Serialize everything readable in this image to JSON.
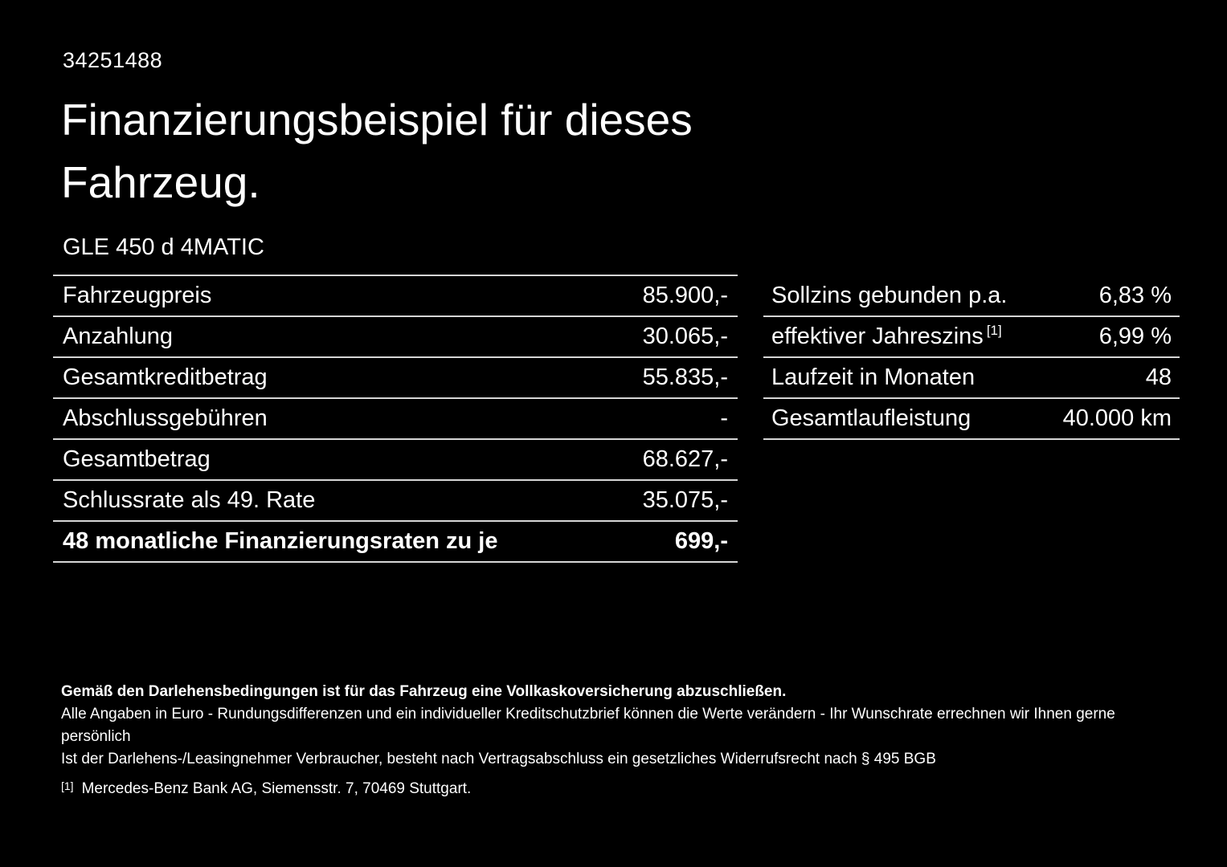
{
  "page": {
    "background_color": "#000000",
    "text_color": "#ffffff",
    "divider_color": "#d6d6d6"
  },
  "header": {
    "reference_number": "34251488",
    "title_line1": "Finanzierungsbeispiel für dieses",
    "title_line2": "Fahrzeug.",
    "vehicle_model": "GLE 450 d 4MATIC"
  },
  "financing_table": {
    "rows": [
      {
        "label": "Fahrzeugpreis",
        "value": "85.900,-"
      },
      {
        "label": "Anzahlung",
        "value": "30.065,-"
      },
      {
        "label": "Gesamtkreditbetrag",
        "value": "55.835,-"
      },
      {
        "label": "Abschlussgebühren",
        "value": "-"
      },
      {
        "label": "Gesamtbetrag",
        "value": "68.627,-"
      },
      {
        "label": "Schlussrate als 49. Rate",
        "value": "35.075,-"
      },
      {
        "label": "48 monatliche Finanzierungsraten zu je",
        "value": "699,-"
      }
    ]
  },
  "conditions_table": {
    "rows": [
      {
        "label": "Sollzins gebunden p.a.",
        "value": "6,83 %"
      },
      {
        "label": "effektiver Jahreszins",
        "footnote_marker": "[1]",
        "value": "6,99 %"
      },
      {
        "label": "Laufzeit in Monaten",
        "value": "48"
      },
      {
        "label": "Gesamtlaufleistung",
        "value": "40.000 km"
      }
    ]
  },
  "legal": {
    "insurance_note": "Gemäß den Darlehensbedingungen ist für das Fahrzeug eine Vollkaskoversicherung abzuschließen.",
    "disclaimer_line1": "Alle Angaben in Euro - Rundungsdifferenzen und ein individueller Kreditschutzbrief können die Werte verändern - Ihr Wunschrate errechnen wir Ihnen gerne persönlich",
    "disclaimer_line2": "Ist der Darlehens-/Leasingnehmer Verbraucher, besteht nach Vertragsabschluss ein gesetzliches Widerrufsrecht nach § 495 BGB",
    "footnote_marker": "[1]",
    "footnote_text": "Mercedes-Benz Bank AG, Siemensstr. 7, 70469 Stuttgart."
  }
}
